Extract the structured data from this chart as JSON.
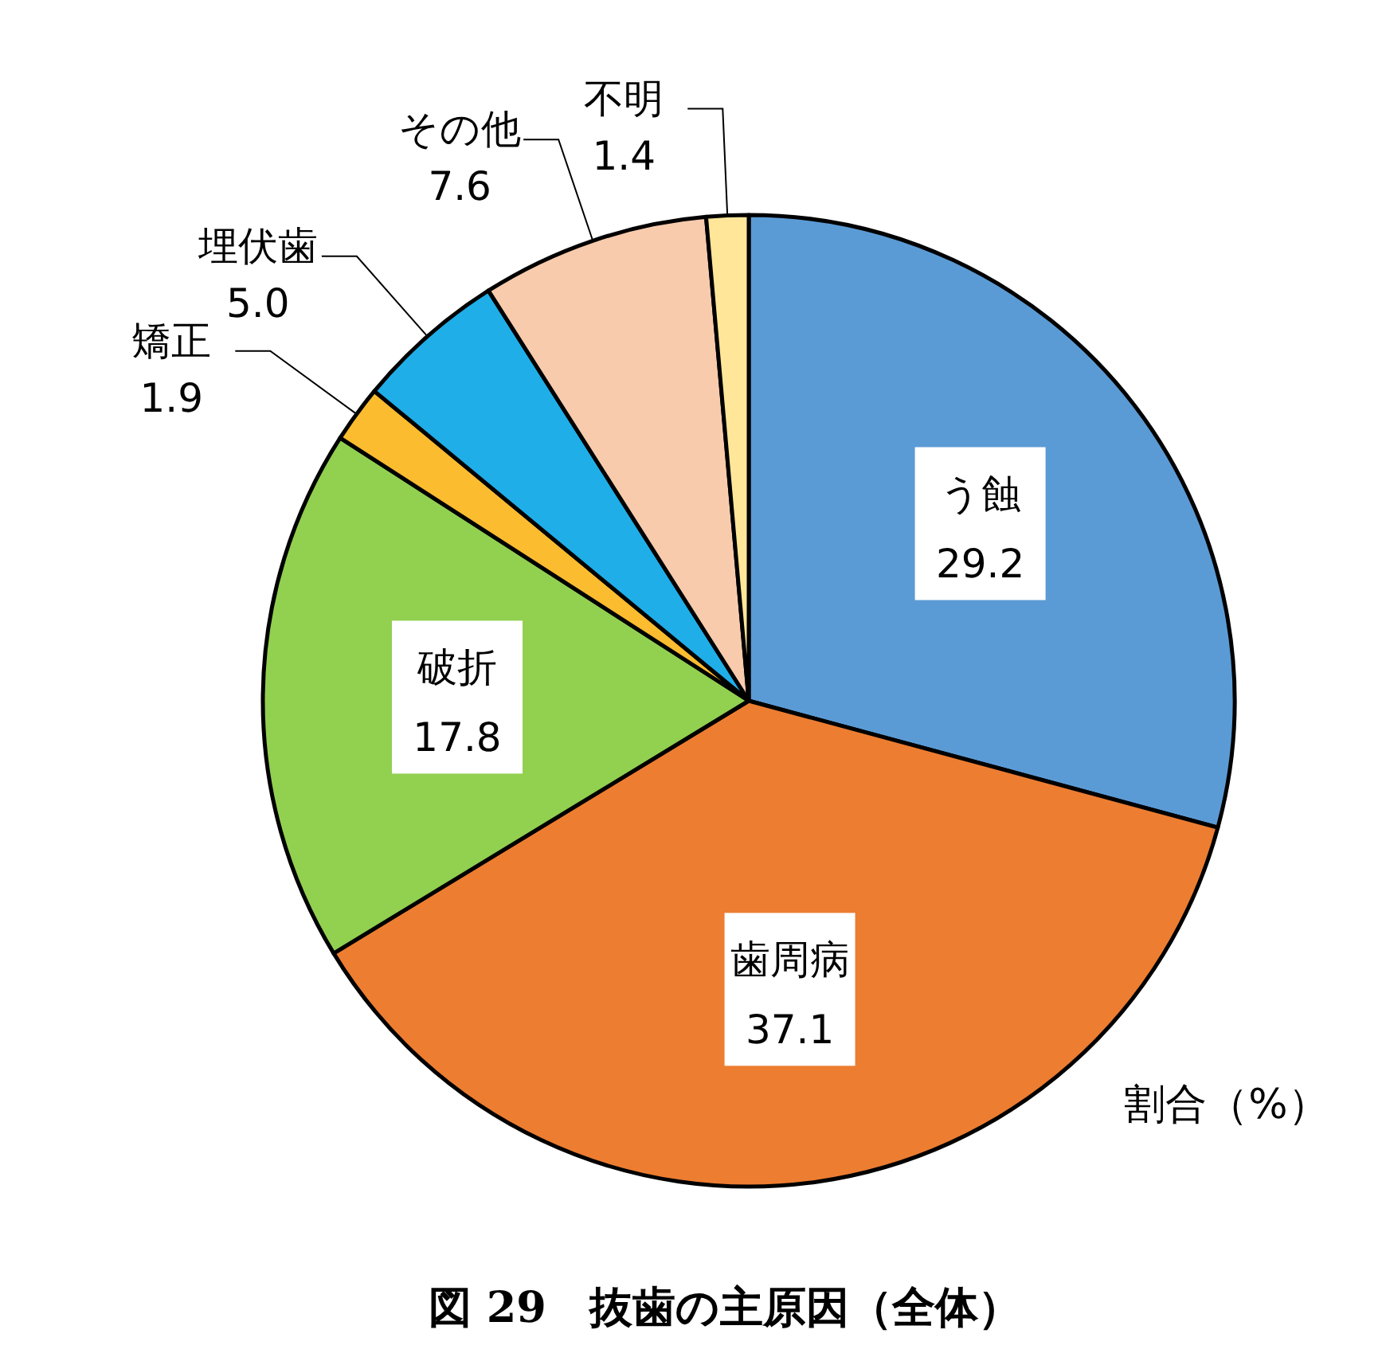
{
  "chart_data": {
    "type": "pie",
    "title": "図 29　抜歯の主原因（全体）",
    "categories": [
      "う蝕",
      "歯周病",
      "破折",
      "矯正",
      "埋伏歯",
      "その他",
      "不明"
    ],
    "values": [
      29.2,
      37.1,
      17.8,
      1.9,
      5.0,
      7.6,
      1.4
    ],
    "colors": [
      "#5b9bd5",
      "#ed7d31",
      "#92d050",
      "#fbbc2f",
      "#1faee8",
      "#f8cbad",
      "#ffe699"
    ],
    "value_labels": [
      "29.2",
      "37.1",
      "17.8",
      "1.9",
      "5.0",
      "7.6",
      "1.4"
    ],
    "annotations": [
      "割合（%）"
    ]
  }
}
